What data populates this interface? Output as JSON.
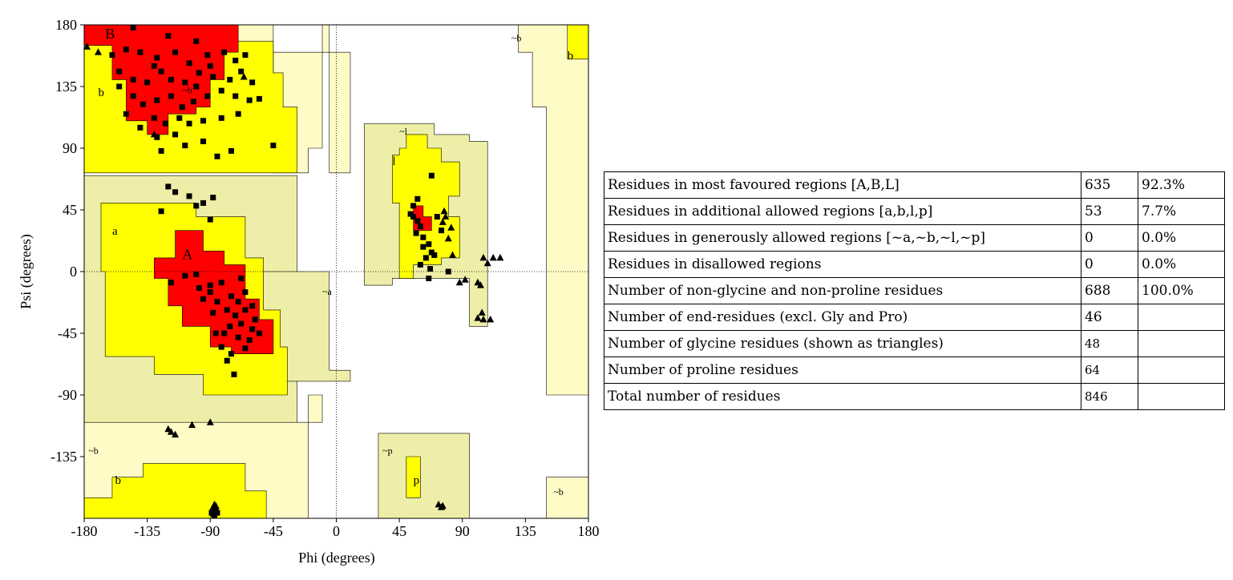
{
  "chart_data": {
    "type": "scatter",
    "title": "",
    "xlabel": "Phi (degrees)",
    "ylabel": "Psi (degrees)",
    "xlim": [
      -180,
      180
    ],
    "ylim": [
      -180,
      180
    ],
    "x_ticks": [
      "-180",
      "-135",
      "-90",
      "-45",
      "0",
      "45",
      "90",
      "135",
      "180"
    ],
    "y_ticks": [
      "180",
      "135",
      "90",
      "45",
      "0",
      "-45",
      "-90",
      "-135"
    ],
    "region_colors": {
      "most_favoured": "#ff0000",
      "additional_allowed": "#ffff00",
      "generously_allowed": "#fffbc6",
      "generously_allowed_alt": "#eeeea8",
      "disallowed": "#ffffff"
    },
    "region_labels": [
      {
        "text": "B",
        "x": -165,
        "y": 170
      },
      {
        "text": "b",
        "x": -170,
        "y": 128
      },
      {
        "text": "~b",
        "x": -110,
        "y": 130
      },
      {
        "text": "a",
        "x": -160,
        "y": 27
      },
      {
        "text": "A",
        "x": -110,
        "y": 9
      },
      {
        "text": "~a",
        "x": -10,
        "y": -17
      },
      {
        "text": "~l",
        "x": 45,
        "y": 100
      },
      {
        "text": "l",
        "x": 40,
        "y": 78
      },
      {
        "text": "~b",
        "x": 125,
        "y": 168
      },
      {
        "text": "b",
        "x": 165,
        "y": 155
      },
      {
        "text": "~b",
        "x": -177,
        "y": -133
      },
      {
        "text": "b",
        "x": -158,
        "y": -155
      },
      {
        "text": "~p",
        "x": 33,
        "y": -133
      },
      {
        "text": "p",
        "x": 55,
        "y": -155
      },
      {
        "text": "~b",
        "x": 155,
        "y": -163
      }
    ],
    "series": [
      {
        "marker": "square",
        "points": [
          [
            -145,
            178
          ],
          [
            -120,
            172
          ],
          [
            -100,
            168
          ],
          [
            -160,
            158
          ],
          [
            -150,
            162
          ],
          [
            -140,
            160
          ],
          [
            -128,
            156
          ],
          [
            -115,
            160
          ],
          [
            -105,
            152
          ],
          [
            -92,
            158
          ],
          [
            -80,
            160
          ],
          [
            -72,
            154
          ],
          [
            -65,
            158
          ],
          [
            -155,
            146
          ],
          [
            -145,
            140
          ],
          [
            -135,
            138
          ],
          [
            -125,
            146
          ],
          [
            -118,
            140
          ],
          [
            -108,
            138
          ],
          [
            -98,
            145
          ],
          [
            -88,
            142
          ],
          [
            -76,
            140
          ],
          [
            -68,
            146
          ],
          [
            -60,
            138
          ],
          [
            -145,
            128
          ],
          [
            -138,
            122
          ],
          [
            -128,
            125
          ],
          [
            -118,
            128
          ],
          [
            -110,
            120
          ],
          [
            -102,
            124
          ],
          [
            -92,
            128
          ],
          [
            -82,
            132
          ],
          [
            -72,
            128
          ],
          [
            -62,
            125
          ],
          [
            -130,
            112
          ],
          [
            -122,
            108
          ],
          [
            -112,
            112
          ],
          [
            -105,
            108
          ],
          [
            -95,
            110
          ],
          [
            -82,
            112
          ],
          [
            -70,
            115
          ],
          [
            -150,
            115
          ],
          [
            -140,
            105
          ],
          [
            -128,
            98
          ],
          [
            -115,
            100
          ],
          [
            -108,
            92
          ],
          [
            -95,
            95
          ],
          [
            -125,
            88
          ],
          [
            -85,
            84
          ],
          [
            -75,
            88
          ],
          [
            -45,
            92
          ],
          [
            -55,
            126
          ],
          [
            -100,
            135
          ],
          [
            -90,
            150
          ],
          [
            -130,
            150
          ],
          [
            -155,
            135
          ],
          [
            -120,
            62
          ],
          [
            -105,
            55
          ],
          [
            -95,
            50
          ],
          [
            -100,
            48
          ],
          [
            -125,
            44
          ],
          [
            -88,
            54
          ],
          [
            -90,
            38
          ],
          [
            -115,
            58
          ],
          [
            -118,
            -8
          ],
          [
            -108,
            -3
          ],
          [
            -98,
            -12
          ],
          [
            -90,
            -10
          ],
          [
            -82,
            -8
          ],
          [
            -75,
            -18
          ],
          [
            -70,
            -22
          ],
          [
            -85,
            -22
          ],
          [
            -78,
            -28
          ],
          [
            -72,
            -32
          ],
          [
            -65,
            -28
          ],
          [
            -68,
            -38
          ],
          [
            -60,
            -42
          ],
          [
            -76,
            -40
          ],
          [
            -70,
            -48
          ],
          [
            -62,
            -50
          ],
          [
            -80,
            -45
          ],
          [
            -65,
            -56
          ],
          [
            -58,
            -35
          ],
          [
            -55,
            -45
          ],
          [
            -95,
            -20
          ],
          [
            -88,
            -30
          ],
          [
            -75,
            -60
          ],
          [
            -73,
            -75
          ],
          [
            -78,
            -65
          ],
          [
            -86,
            -45
          ],
          [
            -65,
            -15
          ],
          [
            -82,
            -55
          ],
          [
            -90,
            -15
          ],
          [
            -100,
            -2
          ],
          [
            -68,
            -5
          ],
          [
            -60,
            -25
          ],
          [
            55,
            48
          ],
          [
            53,
            42
          ],
          [
            58,
            37
          ],
          [
            60,
            33
          ],
          [
            57,
            28
          ],
          [
            62,
            25
          ],
          [
            66,
            20
          ],
          [
            68,
            14
          ],
          [
            64,
            10
          ],
          [
            70,
            12
          ],
          [
            60,
            5
          ],
          [
            66,
            -5
          ],
          [
            62,
            18
          ],
          [
            75,
            30
          ],
          [
            80,
            0
          ],
          [
            72,
            40
          ],
          [
            58,
            53
          ],
          [
            67,
            2
          ],
          [
            68,
            70
          ],
          [
            55,
            40
          ],
          [
            -88,
            -177
          ],
          [
            -86,
            -175
          ],
          [
            -87,
            -178
          ],
          [
            -85,
            -176
          ],
          [
            -89,
            -176
          ]
        ]
      },
      {
        "marker": "triangle",
        "points": [
          [
            -178,
            164
          ],
          [
            -170,
            160
          ],
          [
            -66,
            142
          ],
          [
            -130,
            100
          ],
          [
            78,
            40
          ],
          [
            82,
            32
          ],
          [
            80,
            24
          ],
          [
            77,
            44
          ],
          [
            76,
            36
          ],
          [
            83,
            12
          ],
          [
            88,
            -8
          ],
          [
            92,
            -6
          ],
          [
            101,
            -8
          ],
          [
            103,
            -10
          ],
          [
            108,
            6
          ],
          [
            112,
            10
          ],
          [
            117,
            10
          ],
          [
            105,
            10
          ],
          [
            104,
            -30
          ],
          [
            105,
            -35
          ],
          [
            110,
            -35
          ],
          [
            101,
            -34
          ],
          [
            -118,
            -117
          ],
          [
            -115,
            -119
          ],
          [
            -120,
            -115
          ],
          [
            -103,
            -112
          ],
          [
            -90,
            -110
          ],
          [
            73,
            -170
          ],
          [
            75,
            -172
          ],
          [
            76,
            -171
          ],
          [
            -88,
            -172
          ],
          [
            -86,
            -171
          ],
          [
            -87,
            -170
          ]
        ]
      }
    ]
  },
  "stats_table": {
    "rows": [
      {
        "label": "Residues in most favoured regions [A,B,L]",
        "count": "635",
        "percent": "92.3%"
      },
      {
        "label": "Residues in additional allowed regions [a,b,l,p]",
        "count": "53",
        "percent": "7.7%"
      },
      {
        "label": "Residues in generously allowed regions [~a,~b,~l,~p]",
        "count": "0",
        "percent": "0.0%"
      },
      {
        "label": "Residues in disallowed regions",
        "count": "0",
        "percent": "0.0%"
      },
      {
        "label": "Number of non-glycine and non-proline residues",
        "count": "688",
        "percent": "100.0%"
      },
      {
        "label": "Number of end-residues (excl. Gly and Pro)",
        "count": "46",
        "percent": ""
      },
      {
        "label": "Number of glycine residues (shown as triangles)",
        "count": "48",
        "percent": ""
      },
      {
        "label": "Number of proline residues",
        "count": "64",
        "percent": ""
      },
      {
        "label": "Total number of residues",
        "count": "846",
        "percent": ""
      }
    ]
  }
}
